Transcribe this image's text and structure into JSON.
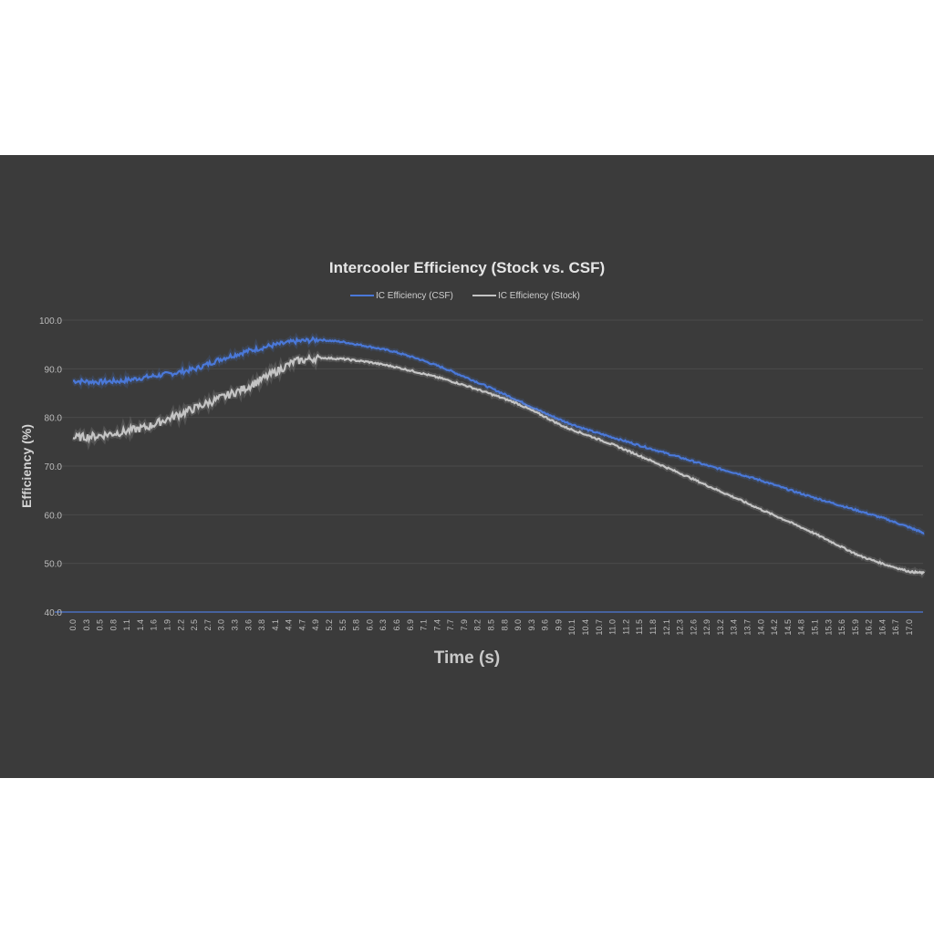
{
  "chart_data": {
    "type": "line",
    "title": "Intercooler Efficiency (Stock vs. CSF)",
    "xlabel": "Time (s)",
    "ylabel": "Efficiency (%)",
    "ylim": [
      40,
      100
    ],
    "xlim": [
      0,
      17.3
    ],
    "yticks": [
      "40.0",
      "50.0",
      "60.0",
      "70.0",
      "80.0",
      "90.0",
      "100.0"
    ],
    "xticks": [
      "0.0",
      "0.3",
      "0.5",
      "0.8",
      "1.1",
      "1.4",
      "1.6",
      "1.9",
      "2.2",
      "2.5",
      "2.7",
      "3.0",
      "3.3",
      "3.6",
      "3.8",
      "4.1",
      "4.4",
      "4.7",
      "4.9",
      "5.2",
      "5.5",
      "5.8",
      "6.0",
      "6.3",
      "6.6",
      "6.9",
      "7.1",
      "7.4",
      "7.7",
      "7.9",
      "8.2",
      "8.5",
      "8.8",
      "9.0",
      "9.3",
      "9.6",
      "9.9",
      "10.1",
      "10.4",
      "10.7",
      "11.0",
      "11.2",
      "11.5",
      "11.8",
      "12.1",
      "12.3",
      "12.6",
      "12.9",
      "13.2",
      "13.4",
      "13.7",
      "14.0",
      "14.2",
      "14.5",
      "14.8",
      "15.1",
      "15.3",
      "15.6",
      "15.9",
      "16.2",
      "16.4",
      "16.7",
      "17.0"
    ],
    "grid": true,
    "legend_position": "top-center",
    "series": [
      {
        "name": "IC Efficiency (CSF)",
        "color": "#4a78d8",
        "x": [
          0,
          0.5,
          1,
          1.5,
          2,
          2.5,
          3,
          3.5,
          4,
          4.5,
          5,
          5.5,
          6,
          6.5,
          7,
          7.5,
          8,
          8.5,
          9,
          9.5,
          10,
          10.5,
          11,
          11.5,
          12,
          12.5,
          13,
          13.5,
          14,
          14.5,
          15,
          15.5,
          16,
          16.5,
          17,
          17.3
        ],
        "y": [
          87.5,
          87.3,
          87.5,
          88.3,
          89,
          90,
          92,
          93.5,
          94.7,
          95.6,
          96,
          95.5,
          94.6,
          93.6,
          92.1,
          90.3,
          88.2,
          86,
          83.7,
          81.3,
          79.1,
          77.3,
          75.8,
          74.3,
          72.8,
          71.3,
          69.8,
          68.5,
          67,
          65.3,
          63.7,
          62.2,
          60.7,
          59.2,
          57.4,
          56.2
        ]
      },
      {
        "name": "IC Efficiency (Stock)",
        "color": "#c4c4c4",
        "x": [
          0,
          0.5,
          1,
          1.5,
          2,
          2.5,
          3,
          3.5,
          4,
          4.5,
          5,
          5.5,
          6,
          6.5,
          7,
          7.5,
          8,
          8.5,
          9,
          9.5,
          10,
          10.5,
          11,
          11.5,
          12,
          12.5,
          13,
          13.5,
          14,
          14.5,
          15,
          15.5,
          16,
          16.5,
          17,
          17.3
        ],
        "y": [
          75.8,
          76.2,
          77,
          78,
          80,
          82,
          84,
          86,
          88.7,
          91.5,
          92.3,
          92,
          91.4,
          90.5,
          89.3,
          88,
          86.5,
          84.8,
          83,
          80.6,
          78,
          76.2,
          74.3,
          72.2,
          70,
          67.8,
          65.5,
          63.3,
          61,
          58.8,
          56.5,
          54,
          51.5,
          49.8,
          48.3,
          48
        ]
      }
    ]
  }
}
